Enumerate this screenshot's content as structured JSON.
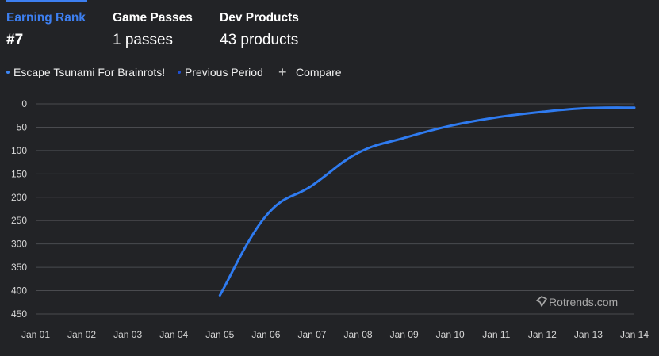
{
  "tabs": [
    {
      "label": "Earning Rank",
      "value": "#7",
      "active": true
    },
    {
      "label": "Game Passes",
      "value": "1 passes",
      "active": false
    },
    {
      "label": "Dev Products",
      "value": "43 products",
      "active": false
    }
  ],
  "legend": {
    "items": [
      {
        "label": "Escape Tsunami For Brainrots!",
        "color": "#3d86f5"
      },
      {
        "label": "Previous Period",
        "color": "#1f4fd1"
      }
    ],
    "compare_label": "Compare"
  },
  "watermark": {
    "text": "Rotrends.com"
  },
  "colors": {
    "accent": "#3d7ff0",
    "line": "#2f7bf0",
    "grid": "#4a4b4f",
    "background": "#222326"
  },
  "chart_data": {
    "type": "line",
    "title": "Earning Rank",
    "xlabel": "",
    "ylabel": "",
    "y_inverted": true,
    "ylim": [
      0,
      450
    ],
    "yticks": [
      0,
      50,
      100,
      150,
      200,
      250,
      300,
      350,
      400,
      450
    ],
    "categories": [
      "Jan 01",
      "Jan 02",
      "Jan 03",
      "Jan 04",
      "Jan 05",
      "Jan 06",
      "Jan 07",
      "Jan 08",
      "Jan 09",
      "Jan 10",
      "Jan 11",
      "Jan 12",
      "Jan 13",
      "Jan 14"
    ],
    "series": [
      {
        "name": "Escape Tsunami For Brainrots!",
        "points": [
          {
            "x": 4,
            "y": 410
          },
          {
            "x": 5,
            "y": 240
          },
          {
            "x": 6,
            "y": 175
          },
          {
            "x": 7,
            "y": 105
          },
          {
            "x": 8,
            "y": 73
          },
          {
            "x": 9,
            "y": 47
          },
          {
            "x": 10,
            "y": 29
          },
          {
            "x": 11,
            "y": 17
          },
          {
            "x": 12,
            "y": 9
          },
          {
            "x": 13,
            "y": 8
          }
        ]
      }
    ]
  }
}
